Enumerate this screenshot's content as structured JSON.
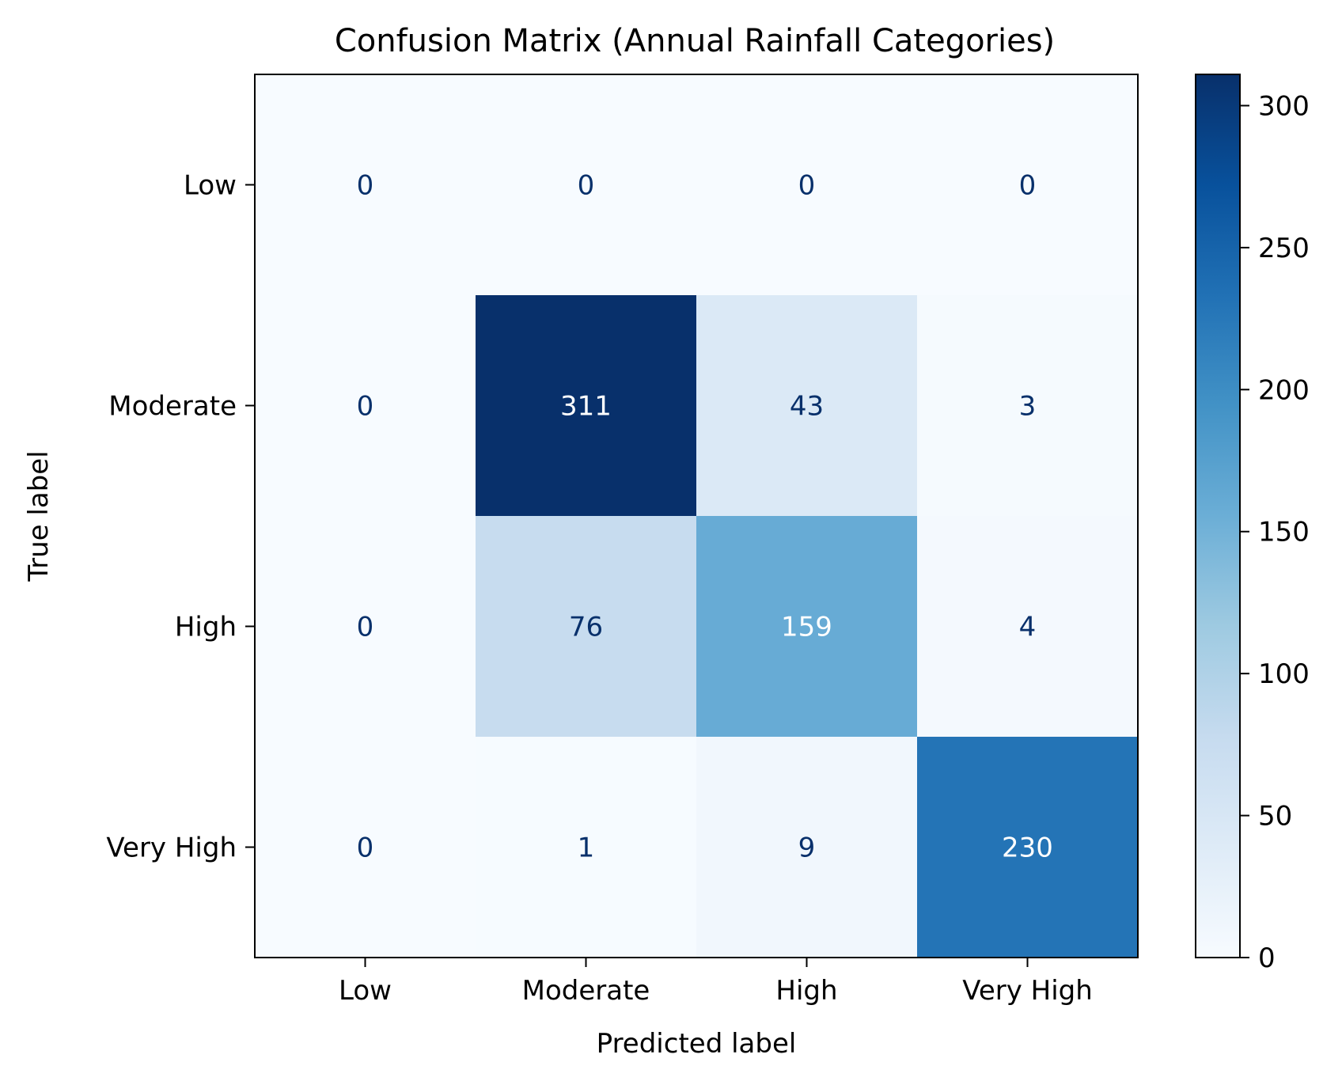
{
  "chart_data": {
    "type": "heatmap",
    "title": "Confusion Matrix (Annual Rainfall Categories)",
    "xlabel": "Predicted label",
    "ylabel": "True label",
    "x_categories": [
      "Low",
      "Moderate",
      "High",
      "Very High"
    ],
    "y_categories": [
      "Low",
      "Moderate",
      "High",
      "Very High"
    ],
    "values": [
      [
        0,
        0,
        0,
        0
      ],
      [
        0,
        311,
        43,
        3
      ],
      [
        0,
        76,
        159,
        4
      ],
      [
        0,
        1,
        9,
        230
      ]
    ],
    "colormap": "Blues",
    "colorbar": {
      "range": [
        0,
        311
      ],
      "ticks": [
        0,
        50,
        100,
        150,
        200,
        250,
        300
      ]
    },
    "grid": false
  },
  "colors": {
    "cell_text_light": "#ffffff",
    "cell_text_dark": "#08306b",
    "axis": "#000000"
  }
}
